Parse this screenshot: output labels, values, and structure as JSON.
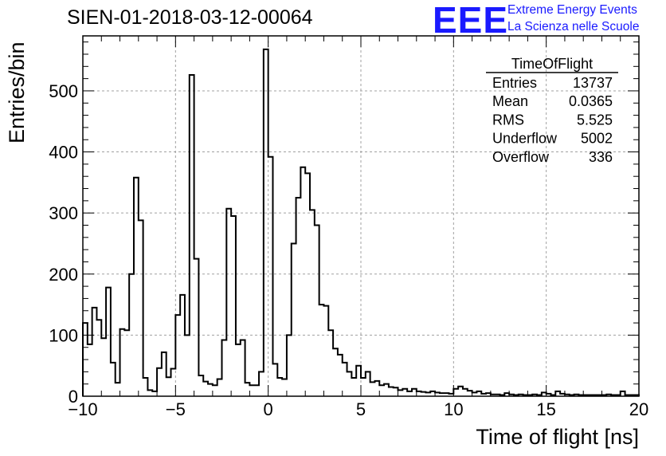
{
  "header": {
    "title": "SIEN-01-2018-03-12-00064",
    "logo_text": "EEE",
    "logo_line1": "Extreme Energy Events",
    "logo_line2": "La Scienza nelle Scuole"
  },
  "stats": {
    "name": "TimeOfFlight",
    "rows": [
      {
        "label": "Entries",
        "value": "13737"
      },
      {
        "label": "Mean",
        "value": "0.0365"
      },
      {
        "label": "RMS",
        "value": "5.525"
      },
      {
        "label": "Underflow",
        "value": "5002"
      },
      {
        "label": "Overflow",
        "value": "336"
      }
    ]
  },
  "colors": {
    "logo": "#1a1aff",
    "line": "#000000",
    "grid": "#a0a0a0"
  },
  "chart_data": {
    "type": "bar",
    "histogram": true,
    "xlabel": "Time of flight [ns]",
    "ylabel": "Entries/bin",
    "xlim": [
      -10,
      20
    ],
    "ylim": [
      0,
      590
    ],
    "grid": true,
    "xticks": [
      -10,
      -5,
      0,
      5,
      10,
      15,
      20
    ],
    "yticks": [
      0,
      100,
      200,
      300,
      400,
      500
    ],
    "bin_width": 0.25,
    "values": [
      120,
      85,
      145,
      125,
      95,
      178,
      55,
      22,
      110,
      108,
      200,
      358,
      288,
      30,
      10,
      8,
      46,
      72,
      31,
      45,
      133,
      166,
      100,
      526,
      225,
      34,
      24,
      20,
      18,
      28,
      92,
      307,
      295,
      85,
      92,
      22,
      18,
      18,
      40,
      568,
      392,
      53,
      30,
      28,
      100,
      250,
      325,
      375,
      365,
      305,
      280,
      150,
      148,
      108,
      78,
      68,
      55,
      40,
      30,
      50,
      30,
      40,
      23,
      25,
      18,
      20,
      15,
      14,
      10,
      12,
      8,
      12,
      8,
      7,
      6,
      8,
      6,
      5,
      5,
      4,
      12,
      16,
      12,
      9,
      6,
      8,
      4,
      5,
      3,
      3,
      2,
      5,
      3,
      2,
      3,
      2,
      2,
      3,
      2,
      6,
      4,
      2,
      8,
      4,
      3,
      2,
      3,
      2,
      2,
      2,
      2,
      2,
      2,
      3,
      2,
      2,
      8,
      2,
      2,
      2
    ]
  }
}
